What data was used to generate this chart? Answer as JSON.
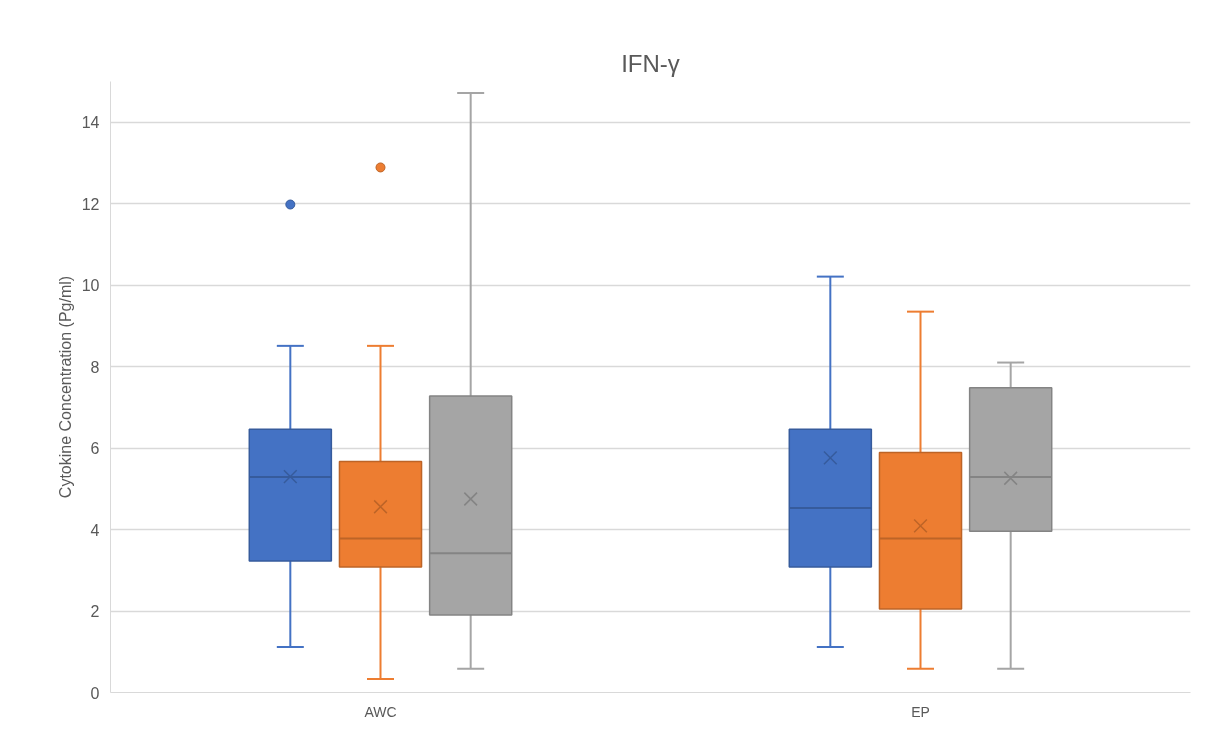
{
  "chart_data": {
    "type": "box",
    "title": "IFN-γ",
    "ylabel": "Cytokine Concentration (Pg/ml)",
    "categories": [
      "AWC",
      "EP"
    ],
    "ylim": [
      0,
      15
    ],
    "yticks": [
      0,
      2,
      4,
      6,
      8,
      10,
      12,
      14
    ],
    "grid": "y",
    "series": [
      {
        "color": "#4472c4",
        "boxes": [
          {
            "low": 1.12,
            "q1": 3.23,
            "median": 5.29,
            "q3": 6.46,
            "high": 8.51,
            "mean": 5.3,
            "outliers": [
              11.98
            ]
          },
          {
            "low": 1.12,
            "q1": 3.08,
            "median": 4.53,
            "q3": 6.46,
            "high": 10.21,
            "mean": 5.76
          }
        ]
      },
      {
        "color": "#ed7d31",
        "boxes": [
          {
            "low": 0.33,
            "q1": 3.08,
            "median": 3.78,
            "q3": 5.67,
            "high": 8.51,
            "mean": 4.56,
            "outliers": [
              12.89
            ]
          },
          {
            "low": 0.58,
            "q1": 2.05,
            "median": 3.78,
            "q3": 5.89,
            "high": 9.35,
            "mean": 4.09
          }
        ]
      },
      {
        "color": "#a5a5a5",
        "boxes": [
          {
            "low": 0.58,
            "q1": 1.9,
            "median": 3.42,
            "q3": 7.28,
            "high": 14.72,
            "mean": 4.75
          },
          {
            "low": 0.58,
            "q1": 3.96,
            "median": 5.29,
            "q3": 7.48,
            "high": 8.1,
            "mean": 5.26
          }
        ]
      }
    ]
  }
}
